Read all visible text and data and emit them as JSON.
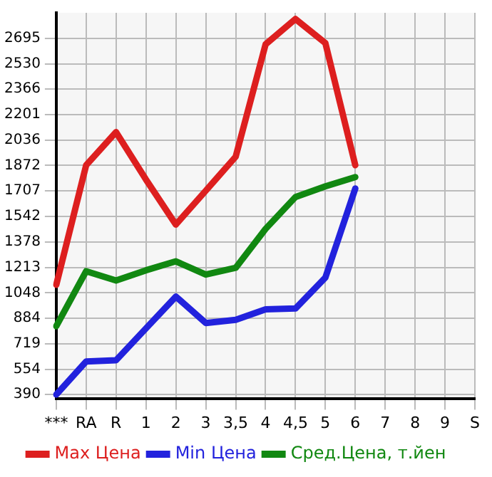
{
  "chart_data": {
    "type": "line",
    "categories": [
      "***",
      "RA",
      "R",
      "1",
      "2",
      "3",
      "3,5",
      "4",
      "4,5",
      "5",
      "6",
      "7",
      "8",
      "9",
      "S"
    ],
    "series": [
      {
        "name": "Max Цена",
        "color": "#dd1f1f",
        "values": [
          1100,
          1874,
          2088,
          1781,
          1490,
          1709,
          1929,
          2656,
          2820,
          2664,
          1874,
          null,
          null,
          null,
          null
        ]
      },
      {
        "name": "Min Цена",
        "color": "#2222dd",
        "values": [
          390,
          604,
          612,
          818,
          1024,
          853,
          873,
          941,
          947,
          1147,
          1723,
          null,
          null,
          null,
          null
        ]
      },
      {
        "name": "Сред.Цена, т.йен",
        "color": "#118811",
        "values": [
          832,
          1188,
          1128,
          1194,
          1252,
          1166,
          1210,
          1462,
          1668,
          1737,
          1797,
          null,
          null,
          null,
          null
        ]
      }
    ],
    "ylim": [
      365,
      2860
    ],
    "yticks": [
      390,
      554,
      719,
      884,
      1048,
      1213,
      1378,
      1542,
      1707,
      1872,
      2036,
      2201,
      2366,
      2530,
      2695
    ],
    "grid": true,
    "legend": "bottom",
    "marker": "none",
    "line_style": "solid"
  }
}
